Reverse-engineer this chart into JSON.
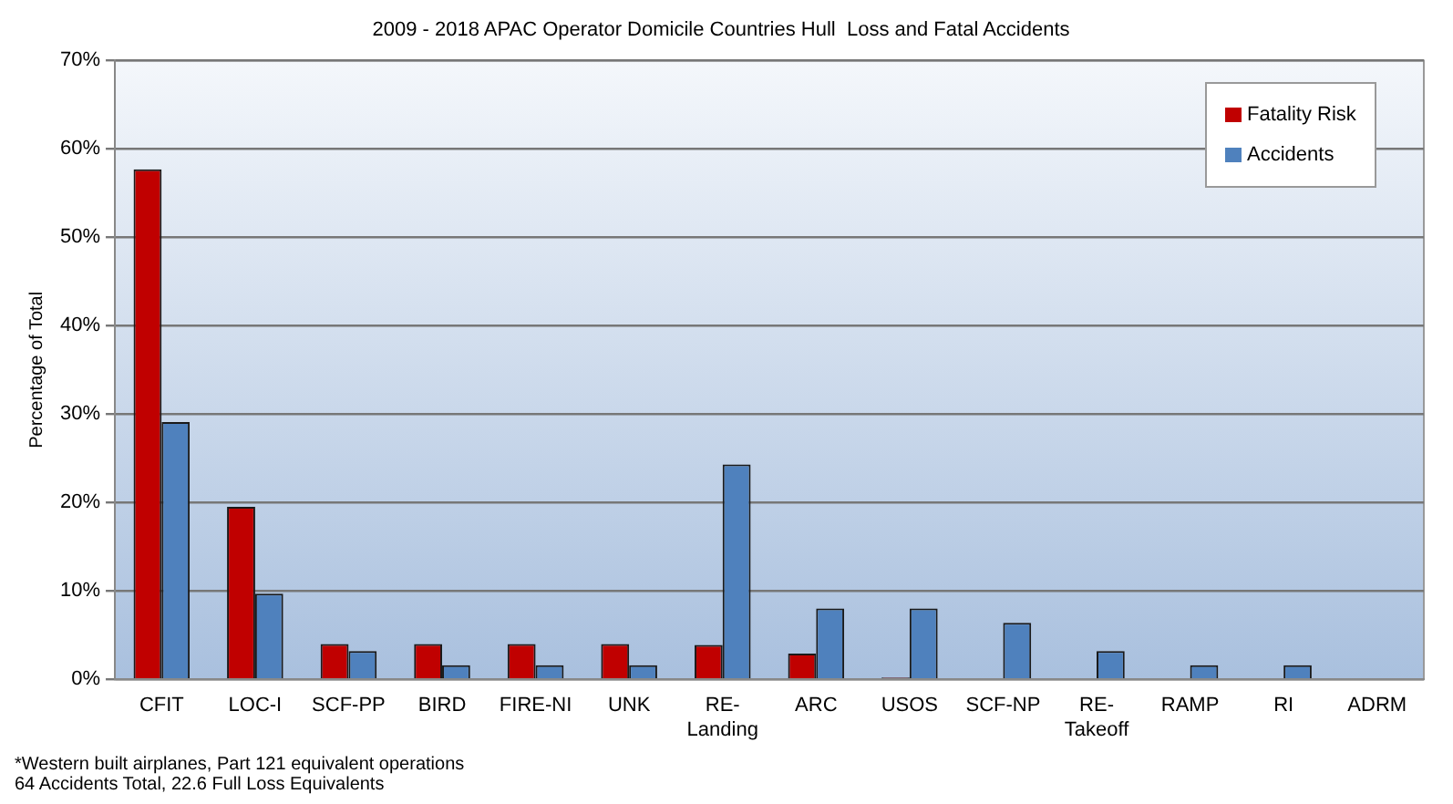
{
  "chart_data": {
    "type": "bar",
    "title": "2009 - 2018 APAC Operator Domicile Countries Hull  Loss and Fatal Accidents",
    "ylabel": "Percentage of Total",
    "categories": [
      "CFIT",
      "LOC-I",
      "SCF-PP",
      "BIRD",
      "FIRE-NI",
      "UNK",
      "RE-\nLanding",
      "ARC",
      "USOS",
      "SCF-NP",
      "RE-\nTakeoff",
      "RAMP",
      "RI",
      "ADRM"
    ],
    "series": [
      {
        "name": "Fatality Risk",
        "color": "#c00000",
        "values": [
          57.7,
          19.5,
          4.0,
          4.0,
          4.0,
          4.0,
          3.9,
          2.9,
          0.2,
          0,
          0,
          0,
          0,
          0
        ]
      },
      {
        "name": "Accidents",
        "color": "#4f81bd",
        "values": [
          29.1,
          9.7,
          3.2,
          1.6,
          1.6,
          1.6,
          24.3,
          8.0,
          8.0,
          6.4,
          3.2,
          1.6,
          1.6,
          0
        ]
      }
    ],
    "ylim": [
      0,
      70
    ],
    "yticks": [
      {
        "value": 0,
        "label": "0%"
      },
      {
        "value": 10,
        "label": "10%"
      },
      {
        "value": 20,
        "label": "20%"
      },
      {
        "value": 30,
        "label": "30%"
      },
      {
        "value": 40,
        "label": "40%"
      },
      {
        "value": 50,
        "label": "50%"
      },
      {
        "value": 60,
        "label": "60%"
      },
      {
        "value": 70,
        "label": "70%"
      }
    ],
    "grid": "y",
    "legend": "top right",
    "annotations": [
      "*Western built airplanes, Part 121 equivalent operations",
      "64 Accidents Total, 22.6 Full Loss Equivalents"
    ]
  }
}
